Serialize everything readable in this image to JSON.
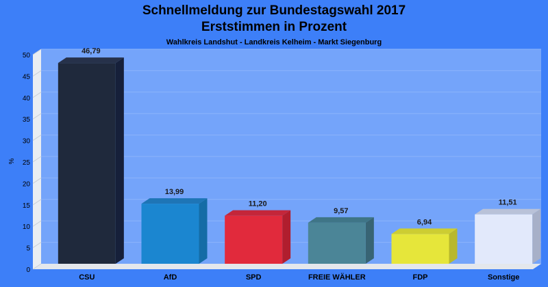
{
  "chart_data": {
    "type": "bar",
    "title": "Schnellmeldung zur Bundestagswahl 2017",
    "title2": "Erststimmen in Prozent",
    "subtitle": "Wahlkreis Landshut - Landkreis Kelheim - Markt Siegenburg",
    "ylabel": "%",
    "xlabel": "",
    "ylim": [
      0,
      50
    ],
    "yticks": [
      0,
      5,
      10,
      15,
      20,
      25,
      30,
      35,
      40,
      45,
      50
    ],
    "grid": true,
    "categories": [
      "CSU",
      "AfD",
      "SPD",
      "FREIE WÄHLER",
      "FDP",
      "Sonstige"
    ],
    "values": [
      46.79,
      13.99,
      11.2,
      9.57,
      6.94,
      11.51
    ],
    "value_labels": [
      "46,79",
      "13,99",
      "11,20",
      "9,57",
      "6,94",
      "11,51"
    ],
    "colors": [
      "#1f293c",
      "#1b86d0",
      "#e12a3c",
      "#4b8597",
      "#e6e63a",
      "#e2e9fb"
    ],
    "side_colors": [
      "#16203a",
      "#146ca6",
      "#b01e2e",
      "#386474",
      "#b8b82c",
      "#a7b0c8"
    ],
    "top_colors": [
      "#26314a",
      "#1e75b6",
      "#c4263a",
      "#3f7587",
      "#cdcd32",
      "#b9c2d8"
    ]
  }
}
